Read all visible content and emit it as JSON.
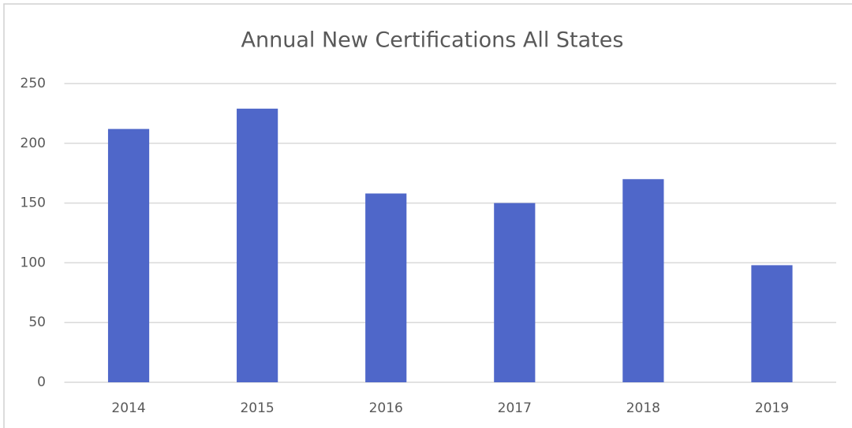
{
  "chart_data": {
    "type": "bar",
    "title": "Annual New Certifications All States",
    "categories": [
      "2014",
      "2015",
      "2016",
      "2017",
      "2018",
      "2019"
    ],
    "values": [
      212,
      229,
      158,
      150,
      170,
      98
    ],
    "color": "#4f67c9",
    "ylim": [
      0,
      250
    ],
    "yticks": [
      0,
      50,
      100,
      150,
      200,
      250
    ],
    "grid": true
  }
}
